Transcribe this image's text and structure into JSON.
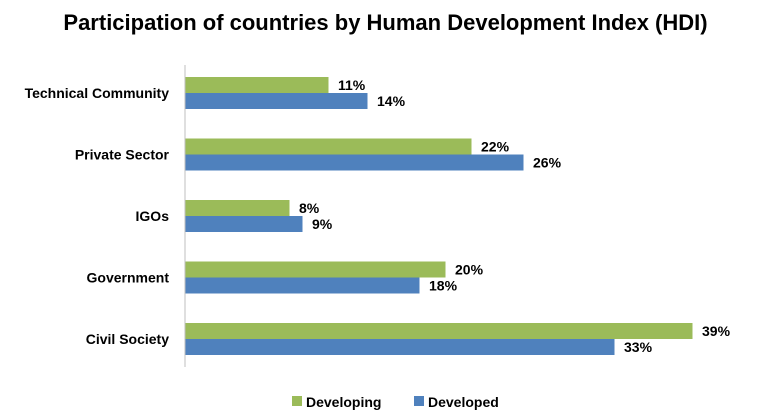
{
  "chart_data": {
    "type": "bar",
    "orientation": "horizontal",
    "title": "Participation of countries by Human Development Index (HDI)",
    "xlabel": "",
    "ylabel": "",
    "xlim": [
      0,
      40
    ],
    "categories": [
      "Technical Community",
      "Private Sector",
      "IGOs",
      "Government",
      "Civil Society"
    ],
    "series": [
      {
        "name": "Developing",
        "color": "#9BBB59",
        "values": [
          11,
          22,
          8,
          20,
          39
        ],
        "labels": [
          "11%",
          "22%",
          "8%",
          "20%",
          "39%"
        ]
      },
      {
        "name": "Developed",
        "color": "#4F81BD",
        "values": [
          14,
          26,
          9,
          18,
          33
        ],
        "labels": [
          "14%",
          "26%",
          "9%",
          "18%",
          "33%"
        ]
      }
    ],
    "grid": false,
    "legend": "bottom",
    "data_labels": true
  }
}
